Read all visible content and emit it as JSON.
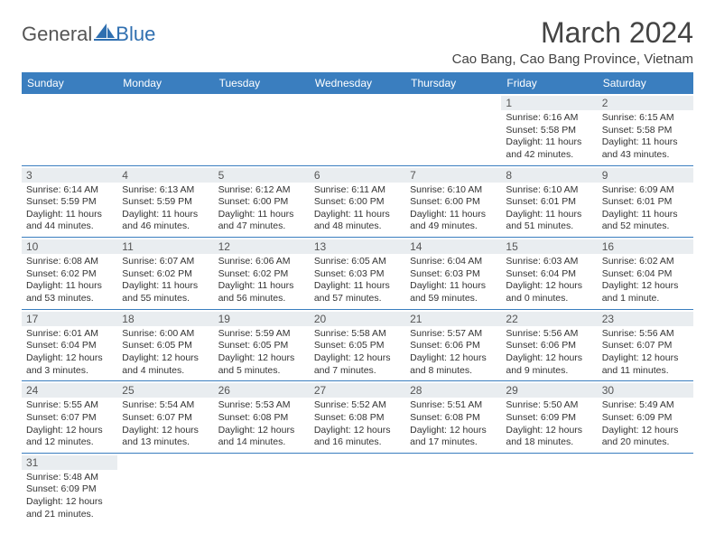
{
  "brand": {
    "part1": "General",
    "part2": "Blue"
  },
  "title": "March 2024",
  "location": "Cao Bang, Cao Bang Province, Vietnam",
  "colors": {
    "headerBg": "#3a7ebf",
    "headerText": "#ffffff",
    "dayNumBg": "#e9edf0",
    "border": "#3a7ebf",
    "logoBlue": "#2f6fb0"
  },
  "weekdays": [
    "Sunday",
    "Monday",
    "Tuesday",
    "Wednesday",
    "Thursday",
    "Friday",
    "Saturday"
  ],
  "weeks": [
    [
      null,
      null,
      null,
      null,
      null,
      {
        "n": "1",
        "sr": "Sunrise: 6:16 AM",
        "ss": "Sunset: 5:58 PM",
        "dl1": "Daylight: 11 hours",
        "dl2": "and 42 minutes."
      },
      {
        "n": "2",
        "sr": "Sunrise: 6:15 AM",
        "ss": "Sunset: 5:58 PM",
        "dl1": "Daylight: 11 hours",
        "dl2": "and 43 minutes."
      }
    ],
    [
      {
        "n": "3",
        "sr": "Sunrise: 6:14 AM",
        "ss": "Sunset: 5:59 PM",
        "dl1": "Daylight: 11 hours",
        "dl2": "and 44 minutes."
      },
      {
        "n": "4",
        "sr": "Sunrise: 6:13 AM",
        "ss": "Sunset: 5:59 PM",
        "dl1": "Daylight: 11 hours",
        "dl2": "and 46 minutes."
      },
      {
        "n": "5",
        "sr": "Sunrise: 6:12 AM",
        "ss": "Sunset: 6:00 PM",
        "dl1": "Daylight: 11 hours",
        "dl2": "and 47 minutes."
      },
      {
        "n": "6",
        "sr": "Sunrise: 6:11 AM",
        "ss": "Sunset: 6:00 PM",
        "dl1": "Daylight: 11 hours",
        "dl2": "and 48 minutes."
      },
      {
        "n": "7",
        "sr": "Sunrise: 6:10 AM",
        "ss": "Sunset: 6:00 PM",
        "dl1": "Daylight: 11 hours",
        "dl2": "and 49 minutes."
      },
      {
        "n": "8",
        "sr": "Sunrise: 6:10 AM",
        "ss": "Sunset: 6:01 PM",
        "dl1": "Daylight: 11 hours",
        "dl2": "and 51 minutes."
      },
      {
        "n": "9",
        "sr": "Sunrise: 6:09 AM",
        "ss": "Sunset: 6:01 PM",
        "dl1": "Daylight: 11 hours",
        "dl2": "and 52 minutes."
      }
    ],
    [
      {
        "n": "10",
        "sr": "Sunrise: 6:08 AM",
        "ss": "Sunset: 6:02 PM",
        "dl1": "Daylight: 11 hours",
        "dl2": "and 53 minutes."
      },
      {
        "n": "11",
        "sr": "Sunrise: 6:07 AM",
        "ss": "Sunset: 6:02 PM",
        "dl1": "Daylight: 11 hours",
        "dl2": "and 55 minutes."
      },
      {
        "n": "12",
        "sr": "Sunrise: 6:06 AM",
        "ss": "Sunset: 6:02 PM",
        "dl1": "Daylight: 11 hours",
        "dl2": "and 56 minutes."
      },
      {
        "n": "13",
        "sr": "Sunrise: 6:05 AM",
        "ss": "Sunset: 6:03 PM",
        "dl1": "Daylight: 11 hours",
        "dl2": "and 57 minutes."
      },
      {
        "n": "14",
        "sr": "Sunrise: 6:04 AM",
        "ss": "Sunset: 6:03 PM",
        "dl1": "Daylight: 11 hours",
        "dl2": "and 59 minutes."
      },
      {
        "n": "15",
        "sr": "Sunrise: 6:03 AM",
        "ss": "Sunset: 6:04 PM",
        "dl1": "Daylight: 12 hours",
        "dl2": "and 0 minutes."
      },
      {
        "n": "16",
        "sr": "Sunrise: 6:02 AM",
        "ss": "Sunset: 6:04 PM",
        "dl1": "Daylight: 12 hours",
        "dl2": "and 1 minute."
      }
    ],
    [
      {
        "n": "17",
        "sr": "Sunrise: 6:01 AM",
        "ss": "Sunset: 6:04 PM",
        "dl1": "Daylight: 12 hours",
        "dl2": "and 3 minutes."
      },
      {
        "n": "18",
        "sr": "Sunrise: 6:00 AM",
        "ss": "Sunset: 6:05 PM",
        "dl1": "Daylight: 12 hours",
        "dl2": "and 4 minutes."
      },
      {
        "n": "19",
        "sr": "Sunrise: 5:59 AM",
        "ss": "Sunset: 6:05 PM",
        "dl1": "Daylight: 12 hours",
        "dl2": "and 5 minutes."
      },
      {
        "n": "20",
        "sr": "Sunrise: 5:58 AM",
        "ss": "Sunset: 6:05 PM",
        "dl1": "Daylight: 12 hours",
        "dl2": "and 7 minutes."
      },
      {
        "n": "21",
        "sr": "Sunrise: 5:57 AM",
        "ss": "Sunset: 6:06 PM",
        "dl1": "Daylight: 12 hours",
        "dl2": "and 8 minutes."
      },
      {
        "n": "22",
        "sr": "Sunrise: 5:56 AM",
        "ss": "Sunset: 6:06 PM",
        "dl1": "Daylight: 12 hours",
        "dl2": "and 9 minutes."
      },
      {
        "n": "23",
        "sr": "Sunrise: 5:56 AM",
        "ss": "Sunset: 6:07 PM",
        "dl1": "Daylight: 12 hours",
        "dl2": "and 11 minutes."
      }
    ],
    [
      {
        "n": "24",
        "sr": "Sunrise: 5:55 AM",
        "ss": "Sunset: 6:07 PM",
        "dl1": "Daylight: 12 hours",
        "dl2": "and 12 minutes."
      },
      {
        "n": "25",
        "sr": "Sunrise: 5:54 AM",
        "ss": "Sunset: 6:07 PM",
        "dl1": "Daylight: 12 hours",
        "dl2": "and 13 minutes."
      },
      {
        "n": "26",
        "sr": "Sunrise: 5:53 AM",
        "ss": "Sunset: 6:08 PM",
        "dl1": "Daylight: 12 hours",
        "dl2": "and 14 minutes."
      },
      {
        "n": "27",
        "sr": "Sunrise: 5:52 AM",
        "ss": "Sunset: 6:08 PM",
        "dl1": "Daylight: 12 hours",
        "dl2": "and 16 minutes."
      },
      {
        "n": "28",
        "sr": "Sunrise: 5:51 AM",
        "ss": "Sunset: 6:08 PM",
        "dl1": "Daylight: 12 hours",
        "dl2": "and 17 minutes."
      },
      {
        "n": "29",
        "sr": "Sunrise: 5:50 AM",
        "ss": "Sunset: 6:09 PM",
        "dl1": "Daylight: 12 hours",
        "dl2": "and 18 minutes."
      },
      {
        "n": "30",
        "sr": "Sunrise: 5:49 AM",
        "ss": "Sunset: 6:09 PM",
        "dl1": "Daylight: 12 hours",
        "dl2": "and 20 minutes."
      }
    ],
    [
      {
        "n": "31",
        "sr": "Sunrise: 5:48 AM",
        "ss": "Sunset: 6:09 PM",
        "dl1": "Daylight: 12 hours",
        "dl2": "and 21 minutes."
      },
      null,
      null,
      null,
      null,
      null,
      null
    ]
  ]
}
